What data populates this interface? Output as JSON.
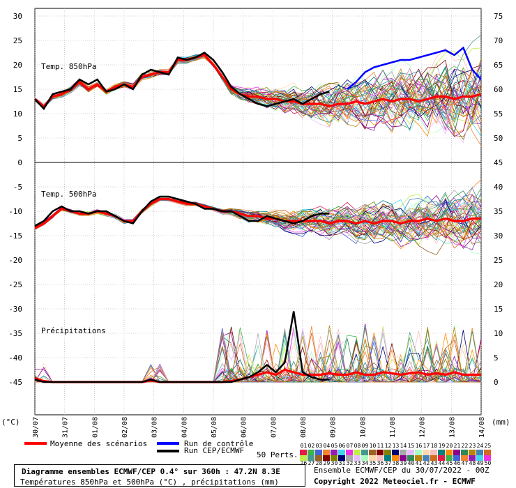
{
  "chart_data": {
    "type": "line",
    "x_dates": [
      "30/07",
      "31/07",
      "01/08",
      "02/08",
      "03/08",
      "04/08",
      "05/08",
      "06/08",
      "07/08",
      "08/08",
      "09/08",
      "10/08",
      "11/08",
      "12/08",
      "13/08",
      "14/08"
    ],
    "x_unit": "(mm)",
    "y_left_ticks": [
      30,
      25,
      20,
      15,
      10,
      5,
      0,
      -5,
      -10,
      -15,
      -20,
      -25,
      -30,
      -35,
      -40,
      -45
    ],
    "y_left_unit": "(°C)",
    "y_right_ticks": [
      75,
      70,
      65,
      60,
      55,
      50,
      45,
      40,
      35,
      30,
      25,
      20,
      15,
      10,
      5,
      0
    ],
    "y_right_unit": "(mm)",
    "panel_labels": {
      "t850": "Temp. 850hPa",
      "t500": "Temp. 500hPa",
      "precip": "Précipitations"
    },
    "series": [
      {
        "name": "Moyenne des scénarios",
        "color": "#ff0000",
        "t850": [
          13,
          11.5,
          13.5,
          14,
          15,
          16.5,
          15,
          16,
          14.5,
          15.5,
          16,
          15.5,
          17.5,
          18,
          18.5,
          18.5,
          21,
          21,
          21.5,
          22,
          20,
          17.5,
          15,
          14,
          13.5,
          13.5,
          13,
          13,
          12.5,
          12.5,
          12,
          12,
          12,
          11.5,
          12,
          12,
          12.5,
          12,
          12.5,
          13,
          12.5,
          13,
          13,
          12.5,
          13,
          13.5,
          13.5,
          13,
          13.5,
          13.5,
          14
        ],
        "t500": [
          -13.5,
          -12.5,
          -11,
          -9.5,
          -10,
          -10.5,
          -10.5,
          -10,
          -10.5,
          -11,
          -12,
          -12,
          -10,
          -8.5,
          -7.5,
          -7.5,
          -8,
          -8.5,
          -8.5,
          -9,
          -9.5,
          -10,
          -10,
          -10.5,
          -11,
          -11,
          -11.5,
          -11.5,
          -12,
          -12,
          -12,
          -12,
          -12,
          -12.5,
          -12,
          -12,
          -12.5,
          -12,
          -12.5,
          -12,
          -12,
          -12.5,
          -12,
          -12,
          -11.5,
          -12,
          -11.5,
          -12,
          -12,
          -11.5,
          -11.5
        ],
        "precip": [
          0.8,
          0.2,
          0,
          0,
          0,
          0,
          0,
          0,
          0,
          0,
          0,
          0,
          0,
          0.3,
          0,
          0,
          0,
          0,
          0,
          0,
          0,
          0,
          0.2,
          0.5,
          1,
          1.5,
          2,
          1.5,
          2.5,
          2,
          1.5,
          1.5,
          1.5,
          1.8,
          1.5,
          1.5,
          2,
          1.5,
          1.5,
          2,
          1.8,
          1.5,
          1.8,
          2,
          1.5,
          1.8,
          1.5,
          2,
          1.5,
          1.5,
          1.5
        ]
      },
      {
        "name": "Run de contrôle",
        "color": "#0000ff",
        "t850": [
          null,
          null,
          null,
          null,
          null,
          null,
          null,
          null,
          null,
          null,
          null,
          null,
          null,
          null,
          null,
          null,
          null,
          null,
          null,
          null,
          null,
          null,
          null,
          null,
          null,
          null,
          null,
          null,
          null,
          null,
          null,
          null,
          null,
          null,
          null,
          15,
          16.5,
          18.5,
          19.5,
          20,
          20.5,
          21,
          21,
          21.5,
          22,
          22.5,
          23,
          22,
          23.5,
          19,
          17
        ]
      },
      {
        "name": "Run CEP/ECMWF",
        "color": "#000000",
        "t850": [
          13,
          11,
          14,
          14.5,
          15,
          17,
          16,
          17,
          14.5,
          15,
          16,
          15,
          18,
          19,
          18.5,
          18,
          21.5,
          21,
          21.5,
          22.5,
          21,
          18.5,
          15.5,
          14,
          13,
          12,
          11.5,
          12,
          12.5,
          13,
          12,
          13,
          14,
          14.5
        ],
        "t500": [
          -13,
          -12,
          -10,
          -9,
          -10,
          -10,
          -10.5,
          -10,
          -10,
          -11,
          -12,
          -12.5,
          -10,
          -8,
          -7,
          -7,
          -7.5,
          -8,
          -8.5,
          -9.5,
          -9.5,
          -10,
          -10,
          -11,
          -12,
          -12,
          -11,
          -11.5,
          -12,
          -12.5,
          -12,
          -11,
          -10.5,
          -10.5
        ],
        "precip": [
          0.5,
          0,
          0,
          0,
          0,
          0,
          0,
          0,
          0,
          0,
          0,
          0,
          0,
          0.5,
          0,
          0,
          0,
          0,
          0,
          0,
          0,
          0,
          0,
          0.5,
          1,
          2,
          3.5,
          2,
          4,
          14.5,
          2,
          1,
          0.5,
          0.5
        ]
      }
    ],
    "perts_label": "50 Perts.",
    "perts_count": 50
  },
  "legend": {
    "mean": "Moyenne des scénarios",
    "control": "Run de contrôle",
    "cep": "Run CEP/ECMWF",
    "perts": "50 Perts.",
    "numbers_row1": [
      "01",
      "02",
      "03",
      "04",
      "05",
      "06",
      "07",
      "08",
      "09",
      "10",
      "11",
      "12",
      "13",
      "14",
      "15",
      "16",
      "17",
      "18",
      "19",
      "20",
      "21",
      "22",
      "23",
      "24",
      "25"
    ],
    "numbers_row2": [
      "26",
      "27",
      "28",
      "29",
      "30",
      "31",
      "32",
      "33",
      "34",
      "35",
      "36",
      "37",
      "38",
      "39",
      "40",
      "41",
      "42",
      "43",
      "44",
      "45",
      "46",
      "47",
      "48",
      "49",
      "50"
    ]
  },
  "footer": {
    "title": "Diagramme ensembles ECMWF/CEP 0.4° sur 360h : 47.2N 8.3E",
    "subtitle": "Températures 850hPa et 500hPa (°C) , précipitations (mm)",
    "credit1": "Ensemble ECMWF/CEP du 30/07/2022 - 00Z",
    "credit2": "Copyright 2022 Meteociel.fr - ECMWF"
  }
}
